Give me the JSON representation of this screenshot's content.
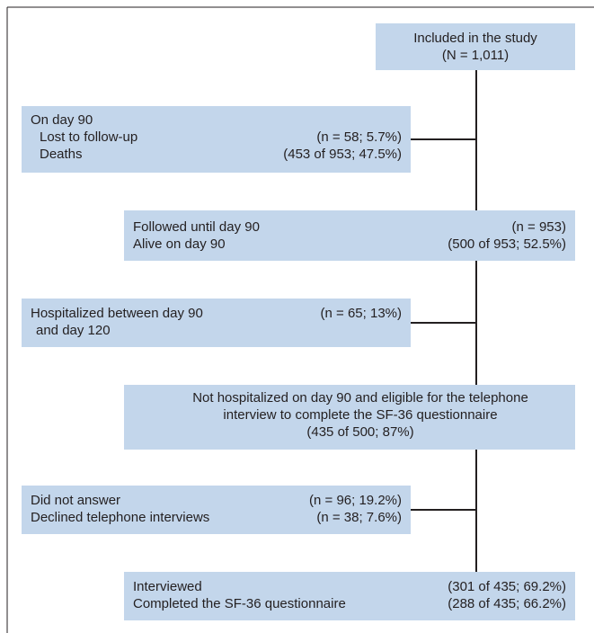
{
  "nodes": [
    {
      "lines": [
        "Included in the study",
        "(N = 1,011)"
      ]
    },
    {
      "title": "On day 90",
      "rows": [
        {
          "label": "Lost to follow-up",
          "count": "(n = 58; 5.7%)"
        },
        {
          "label": "Deaths",
          "count": "(453 of 953; 47.5%)"
        }
      ]
    },
    {
      "rows": [
        {
          "label": "Followed until day 90",
          "count": "(n = 953)"
        },
        {
          "label": "Alive on day 90",
          "count": "(500 of 953; 52.5%)"
        }
      ]
    },
    {
      "rows": [
        {
          "label": "Hospitalized between day 90",
          "count": "(n = 65; 13%)"
        },
        {
          "label": "and day 120"
        }
      ]
    },
    {
      "lines": [
        "Not hospitalized on day 90 and eligible for the telephone",
        "interview to complete the SF-36 questionnaire",
        "(435 of 500; 87%)"
      ]
    },
    {
      "rows": [
        {
          "label": "Did not answer",
          "count": "(n = 96; 19.2%)"
        },
        {
          "label": "Declined telephone interviews",
          "count": "(n = 38; 7.6%)"
        }
      ]
    },
    {
      "rows": [
        {
          "label": "Interviewed",
          "count": "(301 of 435; 69.2%)"
        },
        {
          "label": "Completed the SF-36 questionnaire",
          "count": "(288 of 435; 66.2%)"
        }
      ]
    }
  ]
}
